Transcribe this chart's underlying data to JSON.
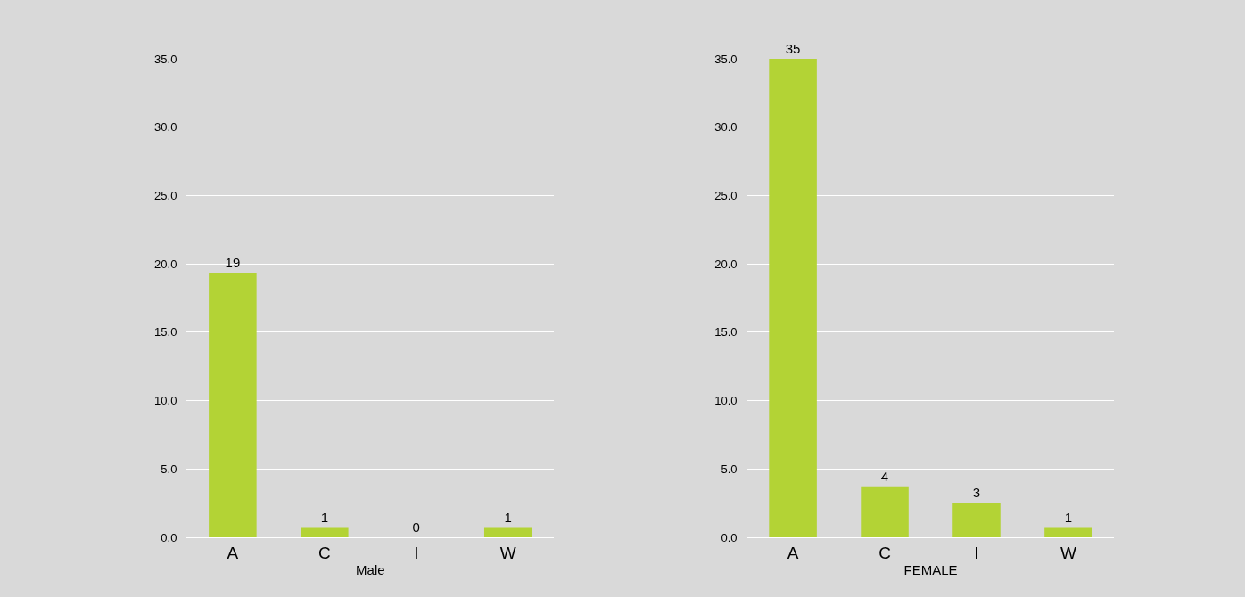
{
  "chart_data": [
    {
      "type": "bar",
      "xlabel": "Male",
      "categories": [
        "A",
        "C",
        "I",
        "W"
      ],
      "values": [
        19.35,
        0.69,
        0,
        0.69
      ],
      "value_labels": [
        "19",
        "1",
        "0",
        "1"
      ],
      "color": "#b3d335",
      "ylim": [
        0,
        35
      ],
      "yticks": [
        {
          "value": 0,
          "label": "0.0"
        },
        {
          "value": 5,
          "label": "5.0"
        },
        {
          "value": 10,
          "label": "10.0"
        },
        {
          "value": 15,
          "label": "15.0"
        },
        {
          "value": 20,
          "label": "20.0"
        },
        {
          "value": 25,
          "label": "25.0"
        },
        {
          "value": 30,
          "label": "30.0"
        },
        {
          "value": 35,
          "label": "35.0"
        }
      ],
      "grid": "y"
    },
    {
      "type": "bar",
      "xlabel": "FEMALE",
      "categories": [
        "A",
        "C",
        "I",
        "W"
      ],
      "values": [
        35,
        3.73,
        2.53,
        0.69
      ],
      "value_labels": [
        "35",
        "4",
        "3",
        "1"
      ],
      "color": "#b3d335",
      "ylim": [
        0,
        35
      ],
      "yticks": [
        {
          "value": 0,
          "label": "0.0"
        },
        {
          "value": 5,
          "label": "5.0"
        },
        {
          "value": 10,
          "label": "10.0"
        },
        {
          "value": 15,
          "label": "15.0"
        },
        {
          "value": 20,
          "label": "20.0"
        },
        {
          "value": 25,
          "label": "25.0"
        },
        {
          "value": 30,
          "label": "30.0"
        },
        {
          "value": 35,
          "label": "35.0"
        }
      ],
      "grid": "y"
    }
  ]
}
